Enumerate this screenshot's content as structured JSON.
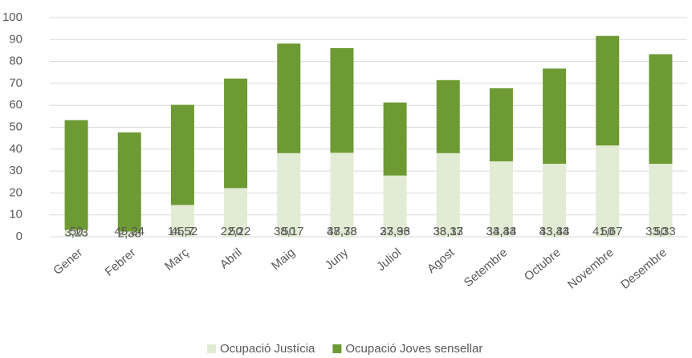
{
  "chart_data": {
    "type": "stacked_bar",
    "categories": [
      "Gener",
      "Febrer",
      "Març",
      "Abril",
      "Maig",
      "Juny",
      "Juliol",
      "Agost",
      "Setembre",
      "Octubre",
      "Novembre",
      "Desembre"
    ],
    "series": [
      {
        "name": "Ocupació Justícia",
        "color": "#e2ebd3",
        "values": [
          3.23,
          2.38,
          14.52,
          22.22,
          38.17,
          38.33,
          27.96,
          38.17,
          34.44,
          33.33,
          41.67,
          33.33
        ],
        "value_labels": [
          "3,23",
          "2,38",
          "14,52",
          "22,22",
          "38,17",
          "38,33",
          "27,96",
          "38,17",
          "34,44",
          "33,33",
          "41,67",
          "33,33"
        ]
      },
      {
        "name": "Ocupació Joves sensellar",
        "color": "#6e9a33",
        "values": [
          50,
          45.24,
          45.7,
          50,
          50,
          47.78,
          33.33,
          33.33,
          33.33,
          43.44,
          50,
          50
        ],
        "value_labels": [
          "50",
          "45,24",
          "45,7",
          "50",
          "50",
          "47,78",
          "33,33",
          "33,33",
          "33,33",
          "43,44",
          "50",
          "50"
        ]
      }
    ],
    "ylim": [
      0,
      100
    ],
    "yticks": [
      0,
      10,
      20,
      30,
      40,
      50,
      60,
      70,
      80,
      90,
      100
    ],
    "grid": true,
    "legend": "bottom"
  }
}
